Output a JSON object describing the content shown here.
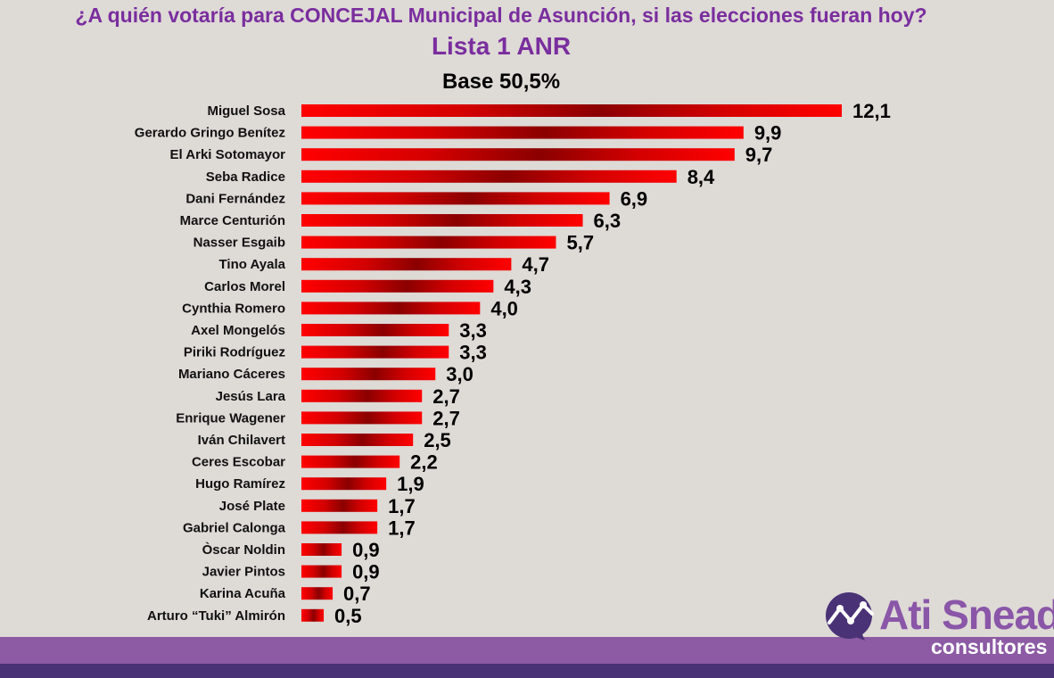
{
  "chart_data": {
    "type": "bar",
    "orientation": "horizontal",
    "title": "¿A quién votaría para CONCEJAL Municipal de Asunción, si las elecciones fueran hoy?",
    "subtitle": "Lista 1 ANR",
    "base_label": "Base 50,5%",
    "categories": [
      "Miguel Sosa",
      "Gerardo Gringo Benítez",
      "El Arki Sotomayor",
      "Seba Radice",
      "Dani Fernández",
      "Marce Centurión",
      "Nasser Esgaib",
      "Tino Ayala",
      "Carlos Morel",
      "Cynthia Romero",
      "Axel Mongelós",
      "Piriki Rodríguez",
      "Mariano Cáceres",
      "Jesús Lara",
      "Enrique Wagener",
      "Iván Chilavert",
      "Ceres Escobar",
      "Hugo Ramírez",
      "José Plate",
      "Gabriel Calonga",
      "Òscar Noldin",
      "Javier Pintos",
      "Karina Acuña",
      "Arturo “Tuki” Almirón"
    ],
    "values": [
      12.1,
      9.9,
      9.7,
      8.4,
      6.9,
      6.3,
      5.7,
      4.7,
      4.3,
      4.0,
      3.3,
      3.3,
      3.0,
      2.7,
      2.7,
      2.5,
      2.2,
      1.9,
      1.7,
      1.7,
      0.9,
      0.9,
      0.7,
      0.5
    ],
    "value_labels": [
      "12,1",
      "9,9",
      "9,7",
      "8,4",
      "6,9",
      "6,3",
      "5,7",
      "4,7",
      "4,3",
      "4,0",
      "3,3",
      "3,3",
      "3,0",
      "2,7",
      "2,7",
      "2,5",
      "2,2",
      "1,9",
      "1,7",
      "1,7",
      "0,9",
      "0,9",
      "0,7",
      "0,5"
    ],
    "xlim": [
      0,
      12.1
    ],
    "grid": false,
    "legend": "none",
    "bar_color": "#ff0000",
    "bar_dark_color": "#8b0000"
  },
  "brand": {
    "name": "Ati Snead",
    "tagline": "consultores",
    "primary_color": "#8a56a8",
    "dark_color": "#4a3276"
  }
}
